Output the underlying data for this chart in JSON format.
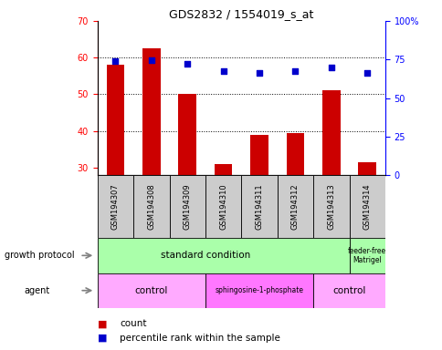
{
  "title": "GDS2832 / 1554019_s_at",
  "samples": [
    "GSM194307",
    "GSM194308",
    "GSM194309",
    "GSM194310",
    "GSM194311",
    "GSM194312",
    "GSM194313",
    "GSM194314"
  ],
  "count_values": [
    58,
    62.5,
    50,
    31,
    39,
    39.5,
    51,
    31.5
  ],
  "percentile_values": [
    74,
    74.5,
    72.5,
    67.5,
    66,
    67.5,
    70,
    66
  ],
  "ylim_left": [
    28,
    70
  ],
  "ylim_right": [
    0,
    100
  ],
  "yticks_left": [
    30,
    40,
    50,
    60,
    70
  ],
  "yticks_right": [
    0,
    25,
    50,
    75,
    100
  ],
  "bar_color": "#CC0000",
  "dot_color": "#0000CC",
  "sample_box_color": "#CCCCCC",
  "green_color": "#AAFFAA",
  "agent_light_color": "#FFAAFF",
  "agent_dark_color": "#FF77FF",
  "count_label": "count",
  "percentile_label": "percentile rank within the sample",
  "growth_protocol_label": "growth protocol",
  "agent_label": "agent",
  "title_fontsize": 9,
  "axis_fontsize": 7,
  "label_fontsize": 7.5,
  "legend_fontsize": 7.5
}
